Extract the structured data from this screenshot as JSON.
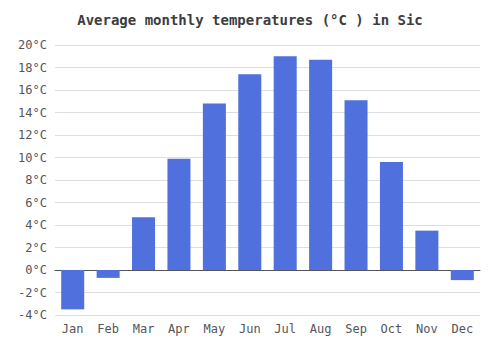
{
  "chart_data": {
    "type": "bar",
    "title": "Average monthly temperatures (°C ) in Sic",
    "categories": [
      "Jan",
      "Feb",
      "Mar",
      "Apr",
      "May",
      "Jun",
      "Jul",
      "Aug",
      "Sep",
      "Oct",
      "Nov",
      "Dec"
    ],
    "values": [
      -3.5,
      -0.7,
      4.7,
      9.9,
      14.8,
      17.4,
      19.0,
      18.7,
      15.1,
      9.6,
      3.5,
      -0.9
    ],
    "ylim": [
      -4,
      20
    ],
    "yticks": [
      {
        "value": -4,
        "label": "-4°C"
      },
      {
        "value": -2,
        "label": "-2°C"
      },
      {
        "value": 0,
        "label": "0°C"
      },
      {
        "value": 2,
        "label": "2°C"
      },
      {
        "value": 4,
        "label": "4°C"
      },
      {
        "value": 6,
        "label": "6°C"
      },
      {
        "value": 8,
        "label": "8°C"
      },
      {
        "value": 10,
        "label": "10°C"
      },
      {
        "value": 12,
        "label": "12°C"
      },
      {
        "value": 14,
        "label": "14°C"
      },
      {
        "value": 16,
        "label": "16°C"
      },
      {
        "value": 18,
        "label": "18°C"
      },
      {
        "value": 20,
        "label": "20°C"
      }
    ],
    "grid": true
  }
}
